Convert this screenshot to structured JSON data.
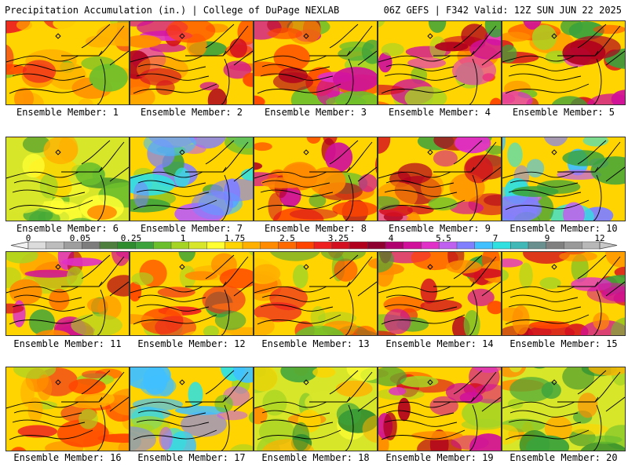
{
  "header": {
    "left": "Precipitation Accumulation (in.) | College of DuPage NEXLAB",
    "right": "06Z GEFS | F342 Valid: 12Z SUN JUN 22 2025"
  },
  "colorbar": {
    "labels": [
      "0",
      "0.05",
      "0.25",
      "1",
      "1.75",
      "2.5",
      "3.25",
      "4",
      "5.5",
      "7",
      "9",
      "12"
    ],
    "colors": [
      "#dcdcdc",
      "#bdbdbd",
      "#9e9e9e",
      "#7d7d7d",
      "#4f7f3f",
      "#2e8b2e",
      "#3ca33c",
      "#6cbf2c",
      "#a6d424",
      "#d8e62a",
      "#ffff33",
      "#ffd400",
      "#ffb000",
      "#ff8c00",
      "#ff6a00",
      "#ff4400",
      "#ee2020",
      "#d41020",
      "#b0001e",
      "#8e0030",
      "#b00070",
      "#d0109a",
      "#e030c8",
      "#c060f0",
      "#8080ff",
      "#40c0ff",
      "#30e0e0",
      "#40b8b8",
      "#6a8f8f",
      "#808080",
      "#9a9a9a",
      "#b8b8b8"
    ]
  },
  "members": [
    {
      "caption": "Ensemble Member: 1"
    },
    {
      "caption": "Ensemble Member: 2"
    },
    {
      "caption": "Ensemble Member: 3"
    },
    {
      "caption": "Ensemble Member: 4"
    },
    {
      "caption": "Ensemble Member: 5"
    },
    {
      "caption": "Ensemble Member: 6"
    },
    {
      "caption": "Ensemble Member: 7"
    },
    {
      "caption": "Ensemble Member: 8"
    },
    {
      "caption": "Ensemble Member: 9"
    },
    {
      "caption": "Ensemble Member: 10"
    },
    {
      "caption": "Ensemble Member: 11"
    },
    {
      "caption": "Ensemble Member: 12"
    },
    {
      "caption": "Ensemble Member: 13"
    },
    {
      "caption": "Ensemble Member: 14"
    },
    {
      "caption": "Ensemble Member: 15"
    },
    {
      "caption": "Ensemble Member: 16"
    },
    {
      "caption": "Ensemble Member: 17"
    },
    {
      "caption": "Ensemble Member: 18"
    },
    {
      "caption": "Ensemble Member: 19"
    },
    {
      "caption": "Ensemble Member: 20"
    }
  ]
}
